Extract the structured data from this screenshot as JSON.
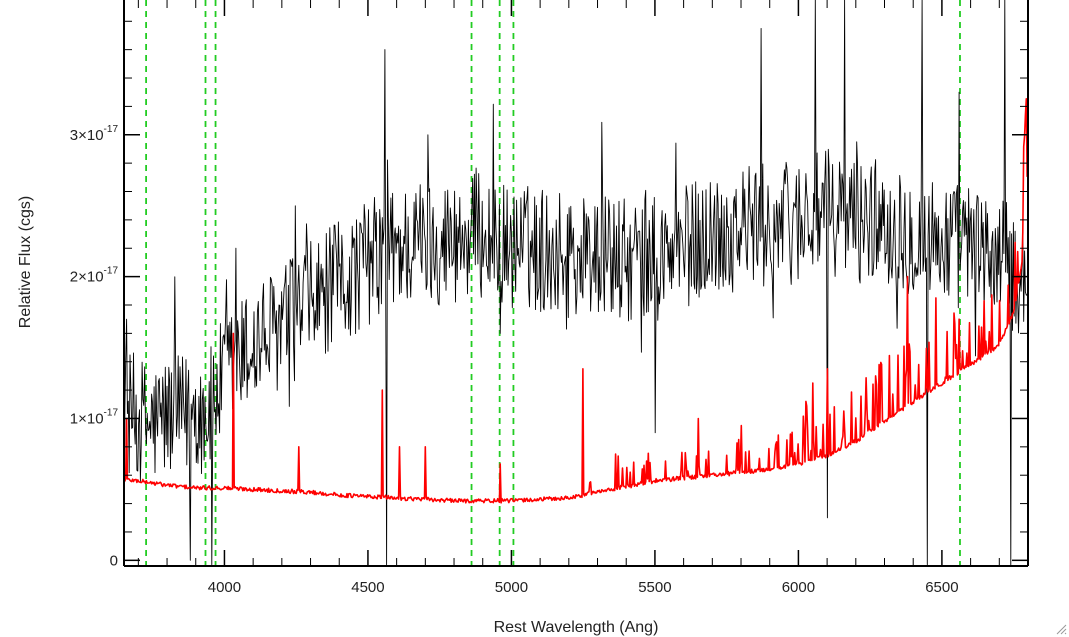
{
  "chart_data": {
    "type": "line",
    "title": "",
    "xlabel": "Rest Wavelength (Ang)",
    "ylabel": "Relative Flux (cgs)",
    "xlim": [
      3650,
      6800
    ],
    "ylim": [
      -4e-19,
      3.95e-17
    ],
    "x_ticks": [
      4000,
      4500,
      5000,
      5500,
      6000,
      6500
    ],
    "x_tick_labels": [
      "4000",
      "4500",
      "5000",
      "5500",
      "6000",
      "6500"
    ],
    "y_ticks": [
      0,
      1e-17,
      2e-17,
      3e-17
    ],
    "y_tick_labels": [
      {
        "value": 0,
        "mantissa": "0",
        "exponent": ""
      },
      {
        "value": 1e-17,
        "mantissa": "1×10",
        "exponent": "-17"
      },
      {
        "value": 2e-17,
        "mantissa": "2×10",
        "exponent": "-17"
      },
      {
        "value": 3e-17,
        "mantissa": "3×10",
        "exponent": "-17"
      }
    ],
    "grid": false,
    "line_markers": [
      3727,
      3934,
      3969,
      4861,
      4959,
      5007,
      6563
    ],
    "line_marker_color": "#22cc22",
    "series": [
      {
        "color": "#000000",
        "values": [
          {
            "x": 3650,
            "y": 1.05e-17
          },
          {
            "x": 3700,
            "y": 1e-17
          },
          {
            "x": 3750,
            "y": 9.5e-18
          },
          {
            "x": 3800,
            "y": 1.02e-17
          },
          {
            "x": 3850,
            "y": 1e-17
          },
          {
            "x": 3900,
            "y": 1.05e-17
          },
          {
            "x": 3950,
            "y": 1.05e-17
          },
          {
            "x": 4000,
            "y": 1.3e-17
          },
          {
            "x": 4100,
            "y": 1.5e-17
          },
          {
            "x": 4200,
            "y": 1.65e-17
          },
          {
            "x": 4300,
            "y": 1.8e-17
          },
          {
            "x": 4400,
            "y": 1.95e-17
          },
          {
            "x": 4500,
            "y": 2.1e-17
          },
          {
            "x": 4600,
            "y": 2.2e-17
          },
          {
            "x": 4700,
            "y": 2.25e-17
          },
          {
            "x": 4800,
            "y": 2.25e-17
          },
          {
            "x": 4900,
            "y": 2.3e-17
          },
          {
            "x": 5000,
            "y": 2.2e-17
          },
          {
            "x": 5100,
            "y": 2.2e-17
          },
          {
            "x": 5200,
            "y": 2.15e-17
          },
          {
            "x": 5300,
            "y": 2.15e-17
          },
          {
            "x": 5400,
            "y": 2.1e-17
          },
          {
            "x": 5500,
            "y": 2.1e-17
          },
          {
            "x": 5600,
            "y": 2.2e-17
          },
          {
            "x": 5700,
            "y": 2.3e-17
          },
          {
            "x": 5800,
            "y": 2.35e-17
          },
          {
            "x": 5900,
            "y": 2.35e-17
          },
          {
            "x": 6000,
            "y": 2.4e-17
          },
          {
            "x": 6100,
            "y": 2.45e-17
          },
          {
            "x": 6200,
            "y": 2.4e-17
          },
          {
            "x": 6300,
            "y": 2.4e-17
          },
          {
            "x": 6400,
            "y": 2.3e-17
          },
          {
            "x": 6500,
            "y": 2.25e-17
          },
          {
            "x": 6600,
            "y": 2.2e-17
          },
          {
            "x": 6700,
            "y": 2.1e-17
          },
          {
            "x": 6800,
            "y": 2e-17
          }
        ],
        "noise": 4.5e-18,
        "spikes": [
          {
            "x": 3660,
            "y": 1.7e-17
          },
          {
            "x": 3880,
            "y": 0.0
          },
          {
            "x": 3955,
            "y": -3e-19
          },
          {
            "x": 4040,
            "y": 2.2e-17
          },
          {
            "x": 4560,
            "y": 3.6e-17
          },
          {
            "x": 4565,
            "y": -3e-19
          },
          {
            "x": 4710,
            "y": 3e-17
          },
          {
            "x": 4960,
            "y": 1.6e-17
          },
          {
            "x": 5500,
            "y": 9e-18
          },
          {
            "x": 5870,
            "y": 3.75e-17
          },
          {
            "x": 6060,
            "y": 3.95e-17
          },
          {
            "x": 6100,
            "y": 3e-18
          },
          {
            "x": 6160,
            "y": 3.95e-17
          },
          {
            "x": 6430,
            "y": 3.95e-17
          },
          {
            "x": 6450,
            "y": -3e-19
          },
          {
            "x": 6560,
            "y": 3.3e-17
          },
          {
            "x": 6720,
            "y": 3.95e-17
          },
          {
            "x": 6740,
            "y": -3e-19
          }
        ]
      },
      {
        "color": "#ff0000",
        "values": [
          {
            "x": 3650,
            "y": 5.7e-18
          },
          {
            "x": 3700,
            "y": 5.6e-18
          },
          {
            "x": 3800,
            "y": 5.3e-18
          },
          {
            "x": 3900,
            "y": 5.1e-18
          },
          {
            "x": 4000,
            "y": 5.1e-18
          },
          {
            "x": 4100,
            "y": 5e-18
          },
          {
            "x": 4200,
            "y": 4.9e-18
          },
          {
            "x": 4300,
            "y": 4.8e-18
          },
          {
            "x": 4400,
            "y": 4.6e-18
          },
          {
            "x": 4500,
            "y": 4.5e-18
          },
          {
            "x": 4600,
            "y": 4.4e-18
          },
          {
            "x": 4700,
            "y": 4.3e-18
          },
          {
            "x": 4800,
            "y": 4.2e-18
          },
          {
            "x": 4900,
            "y": 4.2e-18
          },
          {
            "x": 5000,
            "y": 4.2e-18
          },
          {
            "x": 5100,
            "y": 4.3e-18
          },
          {
            "x": 5200,
            "y": 4.4e-18
          },
          {
            "x": 5300,
            "y": 4.8e-18
          },
          {
            "x": 5400,
            "y": 5.2e-18
          },
          {
            "x": 5500,
            "y": 5.6e-18
          },
          {
            "x": 5600,
            "y": 5.8e-18
          },
          {
            "x": 5700,
            "y": 6e-18
          },
          {
            "x": 5800,
            "y": 6.2e-18
          },
          {
            "x": 5900,
            "y": 6.4e-18
          },
          {
            "x": 6000,
            "y": 6.8e-18
          },
          {
            "x": 6100,
            "y": 7.4e-18
          },
          {
            "x": 6200,
            "y": 8.4e-18
          },
          {
            "x": 6300,
            "y": 9.8e-18
          },
          {
            "x": 6400,
            "y": 1.12e-17
          },
          {
            "x": 6500,
            "y": 1.25e-17
          },
          {
            "x": 6600,
            "y": 1.38e-17
          },
          {
            "x": 6700,
            "y": 1.52e-17
          },
          {
            "x": 6750,
            "y": 1.75e-17
          },
          {
            "x": 6780,
            "y": 2.1e-17
          },
          {
            "x": 6790,
            "y": 3.2e-17
          },
          {
            "x": 6800,
            "y": 2.5e-17
          }
        ],
        "noise": 5e-19,
        "spikes": [
          {
            "x": 3660,
            "y": 1e-17
          },
          {
            "x": 4030,
            "y": 1.6e-17
          },
          {
            "x": 4260,
            "y": 8e-18
          },
          {
            "x": 4550,
            "y": 1.2e-17
          },
          {
            "x": 4610,
            "y": 8e-18
          },
          {
            "x": 4700,
            "y": 8e-18
          },
          {
            "x": 4960,
            "y": 6.8e-18
          },
          {
            "x": 5250,
            "y": 1.35e-17
          },
          {
            "x": 5470,
            "y": 7e-18
          },
          {
            "x": 5650,
            "y": 1e-17
          },
          {
            "x": 5800,
            "y": 9.5e-18
          },
          {
            "x": 6050,
            "y": 1.25e-17
          },
          {
            "x": 6100,
            "y": 1.35e-17
          },
          {
            "x": 6270,
            "y": 1.3e-17
          },
          {
            "x": 6380,
            "y": 2e-17
          },
          {
            "x": 6480,
            "y": 1.85e-17
          },
          {
            "x": 6560,
            "y": 1.7e-17
          }
        ]
      }
    ]
  }
}
